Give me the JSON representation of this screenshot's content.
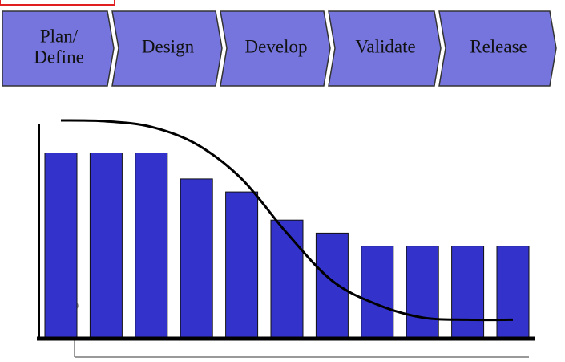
{
  "stages": [
    [
      "Plan/",
      "Define"
    ],
    [
      "Design"
    ],
    [
      "Develop"
    ],
    [
      "Validate"
    ],
    [
      "Release"
    ]
  ],
  "chart_data": {
    "type": "bar",
    "categories": [
      null,
      null,
      null,
      null,
      null,
      null,
      null,
      null,
      null,
      null,
      null
    ],
    "ylim": [
      0,
      100
    ],
    "series": [
      {
        "type": "bar",
        "color": "#3333cc",
        "values": [
          85,
          85,
          85,
          73,
          67,
          54,
          48,
          42,
          42,
          42,
          42
        ]
      },
      {
        "type": "line",
        "color": "#000000",
        "values": [
          100,
          99.6,
          97,
          89,
          73,
          48,
          26,
          15,
          9,
          8,
          8
        ]
      }
    ]
  }
}
